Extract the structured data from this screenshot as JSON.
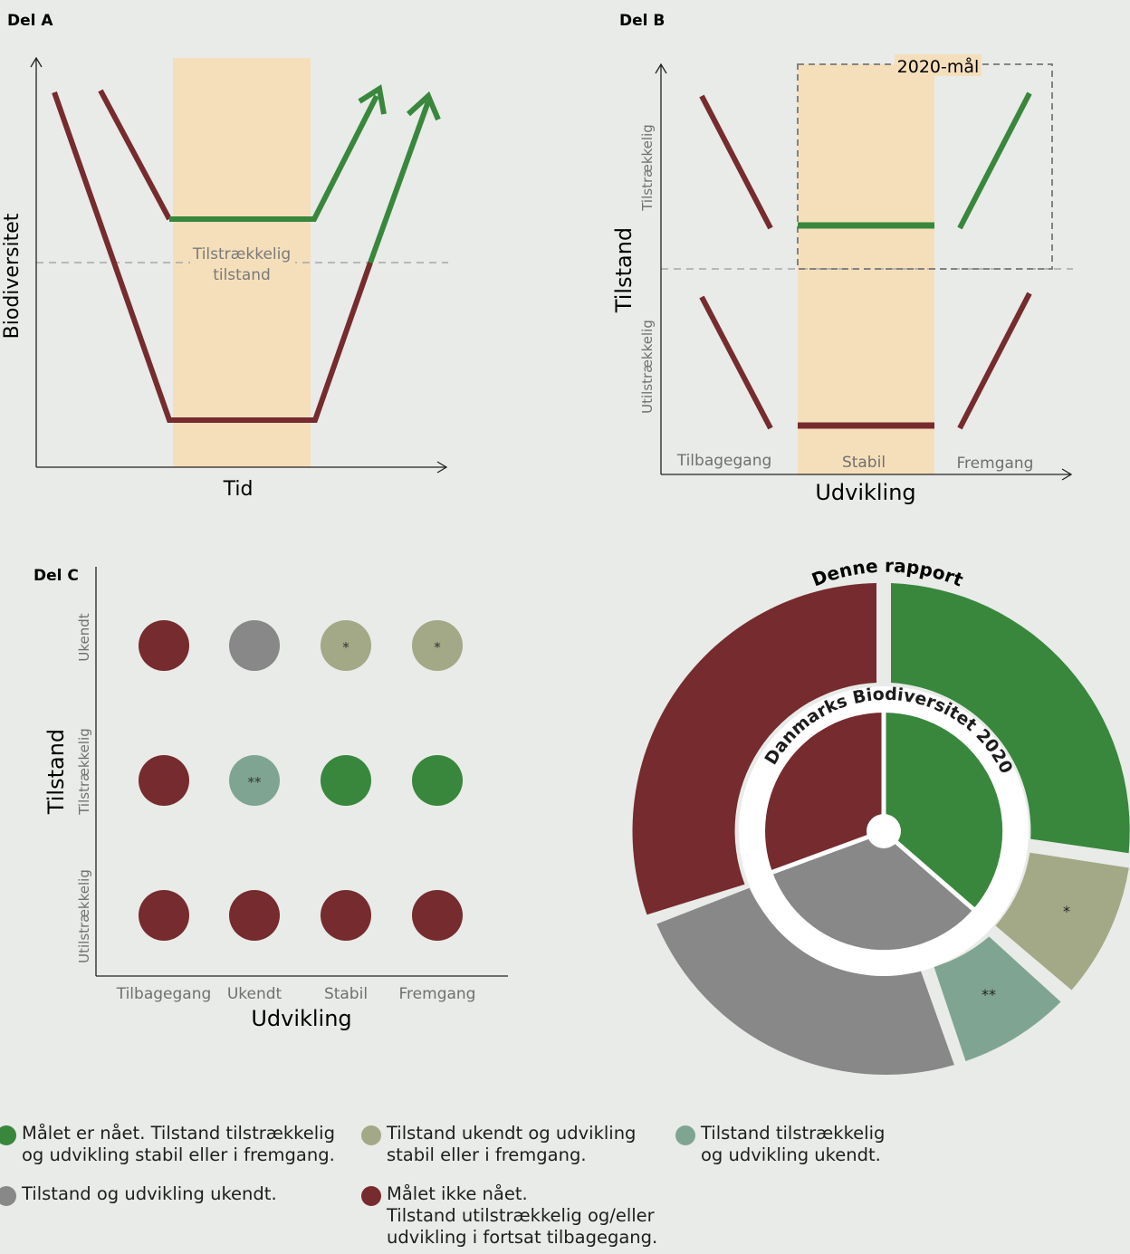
{
  "colors": {
    "background": "#e8ebe7",
    "green": "#38873d",
    "red": "#762b2e",
    "grey": "#888888",
    "olive": "#a3a886",
    "teal": "#7fa592",
    "band": "#f5dfbb",
    "dashed": "#a7a7a7"
  },
  "part_a": {
    "title": "Del A",
    "y_axis": "Biodiversitet",
    "x_axis": "Tid",
    "threshold_label_1": "Tilstrækkelig",
    "threshold_label_2": "tilstand"
  },
  "part_b": {
    "title": "Del B",
    "y_axis": "Tilstand",
    "x_axis": "Udvikling",
    "upper_label": "Tilstrækkelig",
    "lower_label": "Utilstrækkelig",
    "columns": [
      "Tilbagegang",
      "Stabil",
      "Fremgang"
    ],
    "goal_label": "2020-mål"
  },
  "part_c": {
    "title": "Del C",
    "y_axis": "Tilstand",
    "x_axis": "Udvikling",
    "rows": [
      "Ukendt",
      "Tilstrækkelig",
      "Utilstrækkelig"
    ],
    "columns": [
      "Tilbagegang",
      "Ukendt",
      "Stabil",
      "Fremgang"
    ],
    "matrix": [
      [
        {
          "color": "red",
          "mark": ""
        },
        {
          "color": "grey",
          "mark": ""
        },
        {
          "color": "olive",
          "mark": "*"
        },
        {
          "color": "olive",
          "mark": "*"
        }
      ],
      [
        {
          "color": "red",
          "mark": ""
        },
        {
          "color": "teal",
          "mark": "**"
        },
        {
          "color": "green",
          "mark": ""
        },
        {
          "color": "green",
          "mark": ""
        }
      ],
      [
        {
          "color": "red",
          "mark": ""
        },
        {
          "color": "red",
          "mark": ""
        },
        {
          "color": "red",
          "mark": ""
        },
        {
          "color": "red",
          "mark": ""
        }
      ]
    ]
  },
  "donut": {
    "outer_title": "Denne rapport",
    "inner_title": "Danmarks Biodiversitet 2020",
    "outer_marks": {
      "olive": "*",
      "teal": "**"
    }
  },
  "legend": [
    {
      "color": "green",
      "text": "Målet er nået. Tilstand tilstrækkelig\nog udvikling stabil eller i fremgang."
    },
    {
      "color": "olive",
      "text": "Tilstand ukendt og udvikling\nstabil eller i fremgang."
    },
    {
      "color": "teal",
      "text": "Tilstand tilstrækkelig\nog udvikling ukendt."
    },
    {
      "color": "grey",
      "text": "Tilstand og udvikling ukendt."
    },
    {
      "color": "red",
      "text": "Målet ikke nået.\nTilstand utilstrækkelig og/eller\nudvikling i fortsat tilbagegang."
    }
  ]
}
